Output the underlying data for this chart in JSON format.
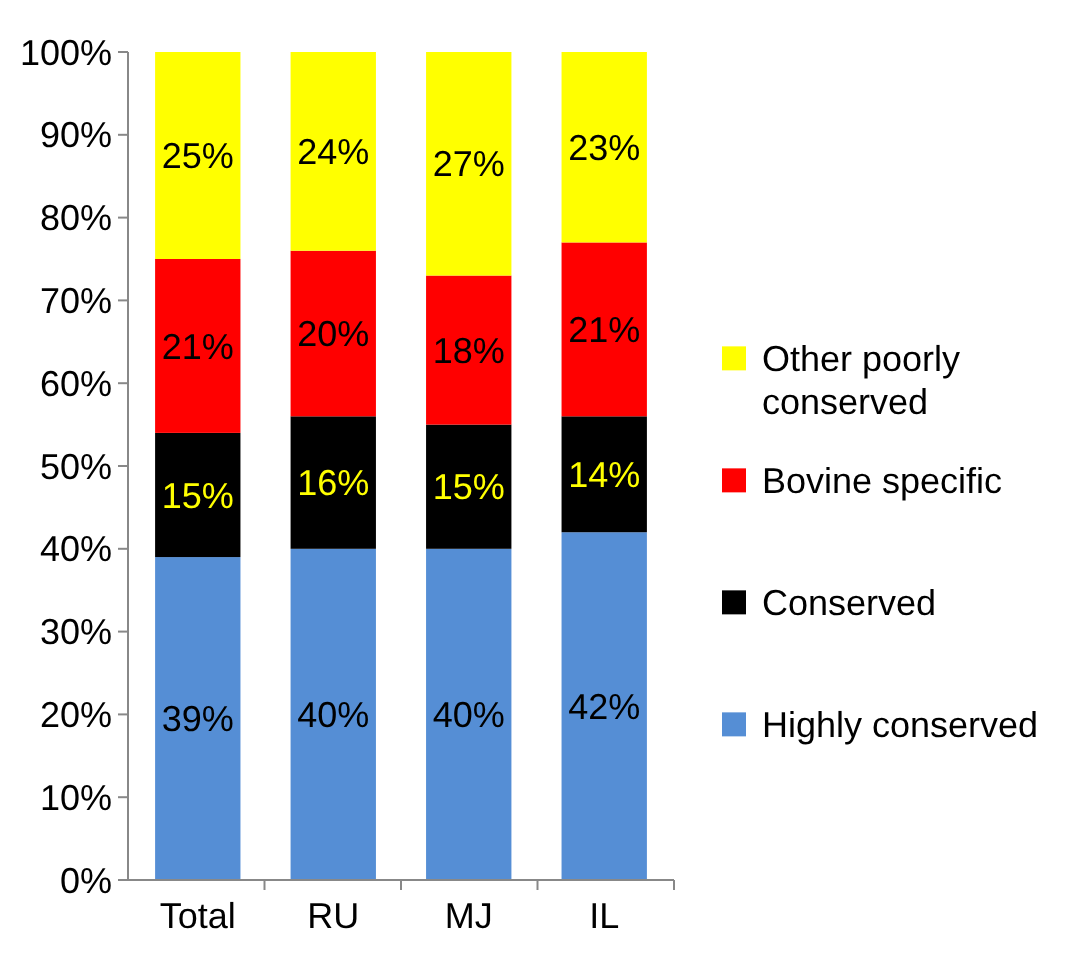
{
  "chart_data": {
    "type": "bar",
    "stacked": true,
    "legend": "right",
    "categories": [
      "Total",
      "RU",
      "MJ",
      "IL"
    ],
    "series": [
      {
        "name": "Highly conserved",
        "color": "#558ed5",
        "values": [
          39,
          40,
          40,
          42
        ],
        "value_labels": [
          "39%",
          "40%",
          "40%",
          "42%"
        ]
      },
      {
        "name": "Conserved",
        "color": "#000000",
        "values": [
          15,
          16,
          15,
          14
        ],
        "value_labels": [
          "15%",
          "16%",
          "15%",
          "14%"
        ]
      },
      {
        "name": "Bovine specific",
        "color": "#ff0000",
        "values": [
          21,
          20,
          18,
          21
        ],
        "value_labels": [
          "21%",
          "20%",
          "18%",
          "21%"
        ]
      },
      {
        "name": "Other poorly conserved",
        "color": "#ffff00",
        "values": [
          25,
          24,
          27,
          23
        ],
        "value_labels": [
          "25%",
          "24%",
          "27%",
          "23%"
        ]
      }
    ],
    "ylim": [
      0,
      100
    ],
    "yticks": [
      {
        "value": 0,
        "label": "0%"
      },
      {
        "value": 10,
        "label": "10%"
      },
      {
        "value": 20,
        "label": "20%"
      },
      {
        "value": 30,
        "label": "30%"
      },
      {
        "value": 40,
        "label": "40%"
      },
      {
        "value": 50,
        "label": "50%"
      },
      {
        "value": 60,
        "label": "60%"
      },
      {
        "value": 70,
        "label": "70%"
      },
      {
        "value": 80,
        "label": "80%"
      },
      {
        "value": 90,
        "label": "90%"
      },
      {
        "value": 100,
        "label": "100%"
      }
    ]
  }
}
